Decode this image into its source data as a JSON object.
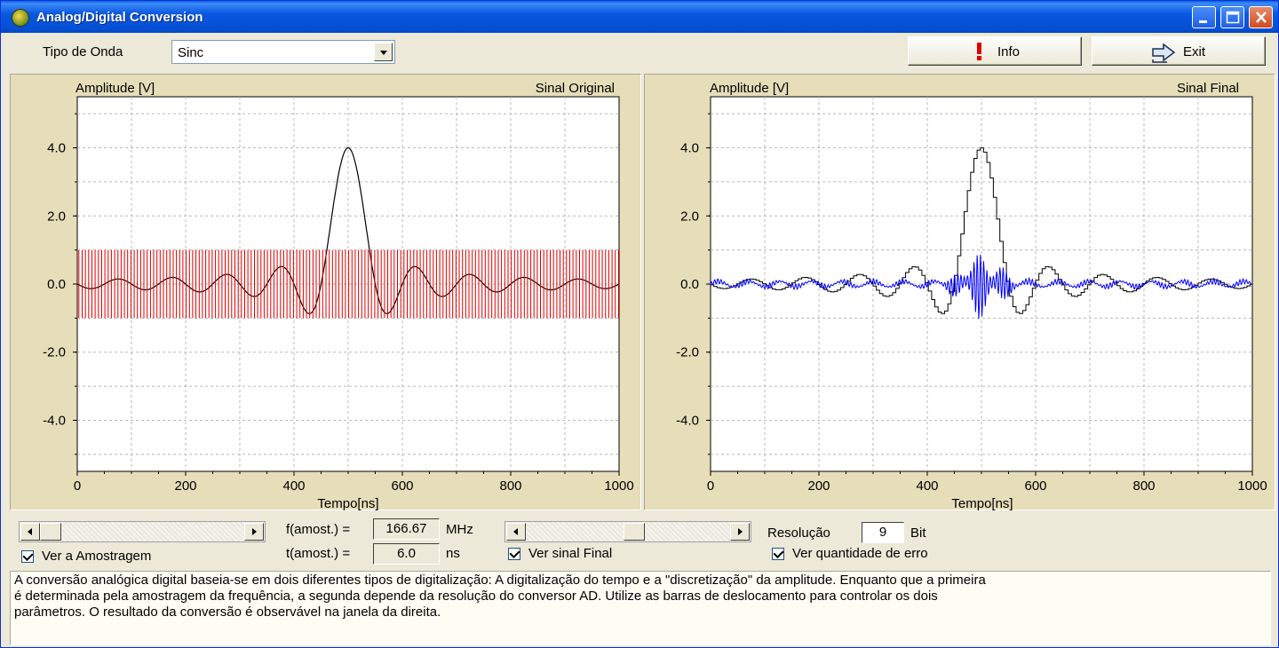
{
  "window": {
    "title": "Analog/Digital Conversion"
  },
  "toolbar": {
    "wave_type_label": "Tipo de Onda",
    "wave_type_value": "Sinc",
    "info_label": "Info",
    "exit_label": "Exit"
  },
  "charts": {
    "left": {
      "ylabel": "Amplitude [V]",
      "title": "Sinal Original",
      "xlabel": "Tempo[ns]"
    },
    "right": {
      "ylabel": "Amplitude [V]",
      "title": "Sinal Final",
      "xlabel": "Tempo[ns]"
    },
    "y_ticks": [
      "4.0",
      "2.0",
      "0.0",
      "-2.0",
      "-4.0"
    ],
    "x_ticks": [
      "0",
      "200",
      "400",
      "600",
      "800",
      "1000"
    ]
  },
  "chart_data": [
    {
      "type": "line",
      "title": "Sinal Original",
      "xlabel": "Tempo[ns]",
      "ylabel": "Amplitude [V]",
      "xlim": [
        0,
        1000
      ],
      "ylim": [
        -5.5,
        5.5
      ],
      "x_ticks": [
        0,
        200,
        400,
        600,
        800,
        1000
      ],
      "y_ticks": [
        4.0,
        2.0,
        0.0,
        -2.0,
        -4.0
      ],
      "grid": true,
      "series": [
        {
          "function": "sinc",
          "peak_x": 500,
          "peak_y": 4.0,
          "color": "#000000"
        },
        {
          "kind": "sampling-pulses",
          "y_range": [
            -1.0,
            1.0
          ],
          "color": "#e00000"
        }
      ]
    },
    {
      "type": "line",
      "title": "Sinal Final",
      "xlabel": "Tempo[ns]",
      "ylabel": "Amplitude [V]",
      "xlim": [
        0,
        1000
      ],
      "ylim": [
        -5.5,
        5.5
      ],
      "x_ticks": [
        0,
        200,
        400,
        600,
        800,
        1000
      ],
      "y_ticks": [
        4.0,
        2.0,
        0.0,
        -2.0,
        -4.0
      ],
      "grid": true,
      "series": [
        {
          "function": "sampled-sinc",
          "peak_x": 500,
          "peak_y": 4.0,
          "color": "#000000"
        },
        {
          "kind": "error",
          "peak_y": 1.0,
          "trough_y": -1.0,
          "color": "#0000ff"
        }
      ]
    }
  ],
  "controls": {
    "sample_freq_label": "f(amost.) =",
    "sample_freq_value": "166.67",
    "sample_freq_unit": "MHz",
    "sample_time_label": "t(amost.) =",
    "sample_time_value": "6.0",
    "sample_time_unit": "ns",
    "resolution_label": "Resolução",
    "resolution_value": "9",
    "resolution_unit": "Bit",
    "show_sampling_label": "Ver a Amostragem",
    "show_final_label": "Ver sinal Final",
    "show_error_label": "Ver quantidade de erro",
    "left_slider_value": 0.0,
    "right_slider_value": 0.53
  },
  "description": "A conversão analógica digital baseia-se em dois diferentes tipos de digitalização: A  digitalização do tempo e a \"discretização\" da amplitude. Enquanto que a primeira\né determinada pela amostragem da frequência, a segunda depende da resolução do conversor AD. Utilize as barras de deslocamento para controlar os dois\nparâmetros. O resultado da conversão é observável na janela da direita."
}
